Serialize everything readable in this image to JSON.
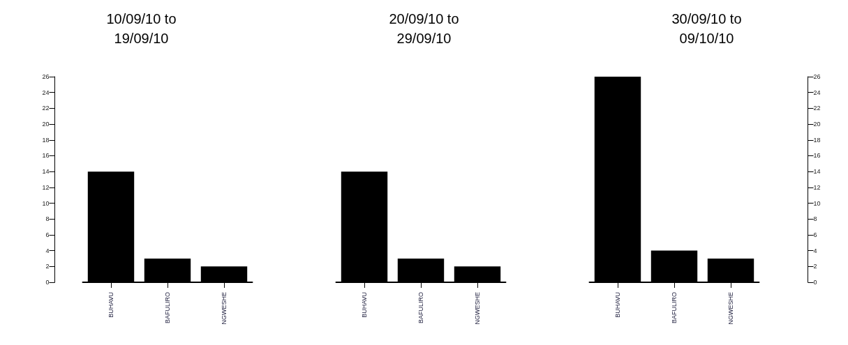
{
  "chart_data": [
    {
      "type": "bar",
      "title": "10/09/10 to\n19/09/10",
      "categories": [
        "BUHAVU",
        "BAFULIRO",
        "NGWESHE"
      ],
      "values": [
        14,
        3,
        2
      ],
      "color": "#000000",
      "ylim": [
        0,
        26
      ],
      "yticks": [
        0,
        2,
        4,
        6,
        8,
        10,
        12,
        14,
        16,
        18,
        20,
        22,
        24,
        26
      ],
      "grid": false
    },
    {
      "type": "bar",
      "title": "20/09/10 to\n29/09/10",
      "categories": [
        "BUHAVU",
        "BAFULIRO",
        "NGWESHE"
      ],
      "values": [
        14,
        3,
        2
      ],
      "color": "#000000",
      "ylim": [
        0,
        26
      ],
      "yticks": [
        0,
        2,
        4,
        6,
        8,
        10,
        12,
        14,
        16,
        18,
        20,
        22,
        24,
        26
      ],
      "tick_labels": "x",
      "grid": false
    },
    {
      "type": "bar",
      "title": "30/09/10 to\n09/10/10",
      "categories": [
        "BUHAVU",
        "BAFULIRO",
        "NGWESHE"
      ],
      "series": [
        {
          "values": [
            26,
            4,
            3
          ],
          "color": "#000000",
          "axis": "y2"
        }
      ],
      "y2lim": [
        0,
        26
      ],
      "y2ticks": [
        0,
        2,
        4,
        6,
        8,
        10,
        12,
        14,
        16,
        18,
        20,
        22,
        24,
        26
      ],
      "grid": false
    }
  ]
}
